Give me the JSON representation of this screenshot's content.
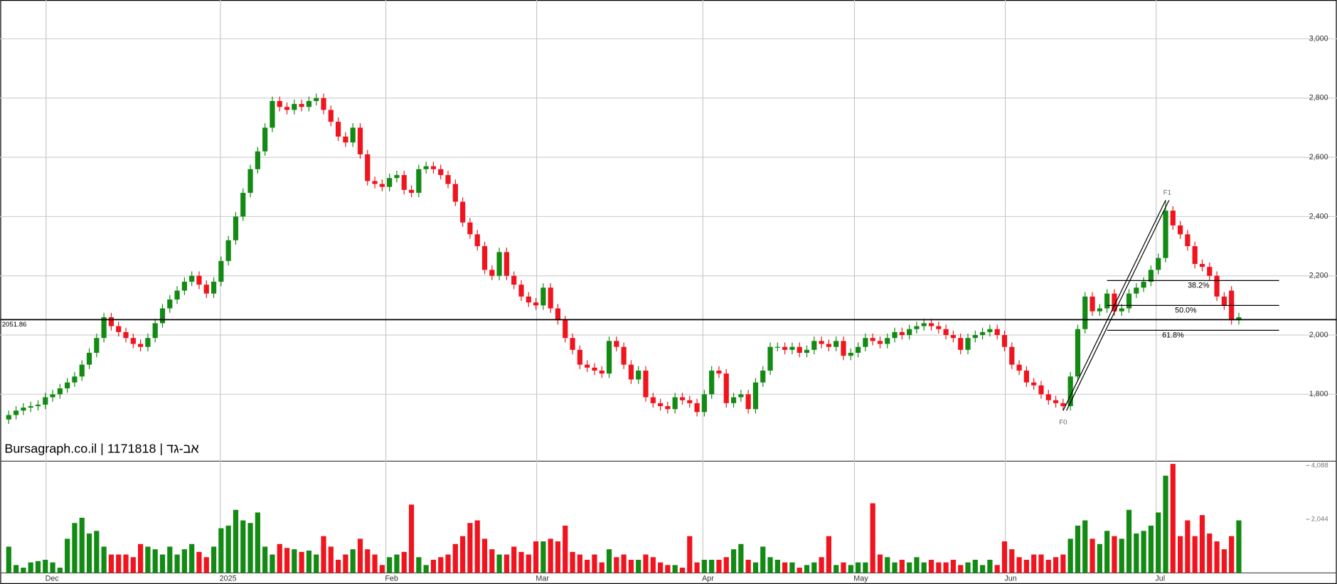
{
  "chart_data": {
    "type": "candlestick",
    "title": "Bursagraph.co.il | 1171818 | אב-גד",
    "up_color": "#138a13",
    "down_color": "#f0141e",
    "grid": true,
    "xlim": [
      -1.16,
      176.95
    ],
    "xticks": [
      {
        "value": 5.1,
        "label": "Dec"
      },
      {
        "value": 28.9,
        "label": "2025"
      },
      {
        "value": 51.5,
        "label": "Feb"
      },
      {
        "value": 72.1,
        "label": "Mar"
      },
      {
        "value": 94.8,
        "label": "Apr"
      },
      {
        "value": 115.5,
        "label": "May"
      },
      {
        "value": 136.1,
        "label": "Jun"
      },
      {
        "value": 156.7,
        "label": "Jul"
      }
    ],
    "ylim": [
      1574,
      3131
    ],
    "yticks": [
      {
        "value": 1800,
        "label": "1,800"
      },
      {
        "value": 2000,
        "label": "2,000"
      },
      {
        "value": 2200,
        "label": "2,200"
      },
      {
        "value": 2400,
        "label": "2,400"
      },
      {
        "value": 2600,
        "label": "2,600"
      },
      {
        "value": 2800,
        "label": "2,800"
      },
      {
        "value": 3000,
        "label": "3,000"
      }
    ],
    "vlim": [
      0,
      4250
    ],
    "vticks": [
      {
        "value": 2044,
        "label": "2,044"
      },
      {
        "value": 4088,
        "label": "4,088"
      }
    ],
    "hline": 2051.86,
    "fib": {
      "start": {
        "x": 144,
        "y": 1745,
        "label": "F0"
      },
      "end": {
        "x": 158,
        "y": 2455,
        "label": "F1"
      },
      "levels": [
        {
          "value": 2184,
          "label": "38.2%"
        },
        {
          "value": 2100,
          "label": "50.0%"
        },
        {
          "value": 2016,
          "label": "61.8%"
        }
      ]
    },
    "open": [
      1715,
      1730,
      1745,
      1755,
      1760,
      1765,
      1790,
      1800,
      1820,
      1840,
      1860,
      1900,
      1940,
      1990,
      2060,
      2030,
      2010,
      1990,
      1970,
      1960,
      1990,
      2040,
      2090,
      2120,
      2150,
      2180,
      2200,
      2170,
      2140,
      2180,
      2250,
      2320,
      2400,
      2480,
      2560,
      2620,
      2700,
      2790,
      2770,
      2760,
      2780,
      2770,
      2790,
      2800,
      2760,
      2720,
      2670,
      2650,
      2700,
      2610,
      2520,
      2510,
      2500,
      2530,
      2540,
      2490,
      2480,
      2560,
      2570,
      2560,
      2540,
      2510,
      2450,
      2380,
      2340,
      2300,
      2220,
      2200,
      2280,
      2200,
      2170,
      2130,
      2110,
      2100,
      2160,
      2090,
      2050,
      1990,
      1950,
      1900,
      1890,
      1880,
      1870,
      1980,
      1960,
      1900,
      1850,
      1880,
      1790,
      1770,
      1760,
      1750,
      1790,
      1780,
      1770,
      1740,
      1800,
      1880,
      1870,
      1770,
      1790,
      1800,
      1750,
      1840,
      1880,
      1960,
      1960,
      1950,
      1960,
      1940,
      1950,
      1980,
      1970,
      1960,
      1980,
      1930,
      1940,
      1960,
      1990,
      1980,
      1970,
      1990,
      2010,
      2000,
      2020,
      2030,
      2040,
      2030,
      2020,
      2000,
      1990,
      1950,
      1990,
      2000,
      2010,
      2020,
      2000,
      1960,
      1900,
      1880,
      1840,
      1830,
      1800,
      1780,
      1770,
      1760,
      1860,
      2020,
      2130,
      2080,
      2090,
      2140,
      2080,
      2090,
      2140,
      2160,
      2180,
      2220,
      2260,
      2420,
      2370,
      2340,
      2300,
      2240,
      2230,
      2200,
      2130,
      2150,
      2050
    ],
    "high": [
      1745,
      1760,
      1770,
      1775,
      1780,
      1805,
      1815,
      1835,
      1855,
      1875,
      1915,
      1955,
      2005,
      2075,
      2075,
      2045,
      2025,
      2005,
      1985,
      2005,
      2055,
      2105,
      2135,
      2165,
      2195,
      2215,
      2215,
      2185,
      2195,
      2265,
      2335,
      2415,
      2495,
      2575,
      2635,
      2715,
      2805,
      2805,
      2785,
      2795,
      2795,
      2805,
      2815,
      2815,
      2775,
      2735,
      2685,
      2715,
      2715,
      2625,
      2535,
      2525,
      2545,
      2555,
      2555,
      2505,
      2575,
      2585,
      2585,
      2575,
      2555,
      2525,
      2465,
      2395,
      2355,
      2315,
      2235,
      2295,
      2295,
      2215,
      2185,
      2145,
      2125,
      2175,
      2175,
      2105,
      2065,
      2005,
      1965,
      1915,
      1905,
      1895,
      1995,
      1995,
      1975,
      1915,
      1895,
      1895,
      1805,
      1785,
      1775,
      1805,
      1805,
      1795,
      1785,
      1815,
      1895,
      1895,
      1885,
      1805,
      1815,
      1815,
      1855,
      1895,
      1975,
      1975,
      1975,
      1975,
      1975,
      1965,
      1995,
      1995,
      1985,
      1995,
      1995,
      1955,
      1975,
      2005,
      2005,
      1995,
      2005,
      2025,
      2025,
      2035,
      2045,
      2055,
      2055,
      2045,
      2035,
      2015,
      2005,
      2005,
      2015,
      2025,
      2035,
      2035,
      2015,
      1975,
      1915,
      1895,
      1855,
      1845,
      1815,
      1795,
      1785,
      1875,
      2035,
      2145,
      2145,
      2105,
      2155,
      2155,
      2105,
      2155,
      2175,
      2195,
      2235,
      2275,
      2455,
      2435,
      2385,
      2355,
      2315,
      2255,
      2245,
      2215,
      2145,
      2165,
      2075
    ],
    "low": [
      1700,
      1715,
      1730,
      1740,
      1745,
      1750,
      1775,
      1785,
      1805,
      1825,
      1845,
      1885,
      1925,
      1975,
      2015,
      1995,
      1975,
      1955,
      1945,
      1945,
      1975,
      2025,
      2075,
      2105,
      2135,
      2165,
      2155,
      2125,
      2125,
      2165,
      2235,
      2305,
      2385,
      2465,
      2545,
      2605,
      2685,
      2755,
      2745,
      2745,
      2755,
      2755,
      2775,
      2745,
      2705,
      2655,
      2635,
      2635,
      2595,
      2505,
      2495,
      2485,
      2485,
      2515,
      2475,
      2465,
      2465,
      2545,
      2545,
      2525,
      2495,
      2435,
      2365,
      2325,
      2285,
      2205,
      2185,
      2185,
      2185,
      2155,
      2115,
      2095,
      2085,
      2085,
      2075,
      2035,
      1975,
      1935,
      1885,
      1875,
      1865,
      1855,
      1855,
      1945,
      1885,
      1835,
      1835,
      1775,
      1755,
      1745,
      1735,
      1735,
      1765,
      1755,
      1725,
      1725,
      1785,
      1855,
      1755,
      1755,
      1775,
      1735,
      1735,
      1825,
      1865,
      1945,
      1935,
      1935,
      1925,
      1925,
      1935,
      1955,
      1945,
      1945,
      1915,
      1915,
      1925,
      1945,
      1965,
      1955,
      1955,
      1975,
      1985,
      1985,
      2005,
      2015,
      2015,
      2005,
      1985,
      1975,
      1935,
      1935,
      1975,
      1985,
      1995,
      1985,
      1945,
      1885,
      1865,
      1825,
      1815,
      1785,
      1765,
      1755,
      1745,
      1745,
      1845,
      2005,
      2065,
      2065,
      2075,
      2065,
      2065,
      2075,
      2125,
      2145,
      2165,
      2205,
      2245,
      2355,
      2325,
      2285,
      2225,
      2215,
      2185,
      2115,
      2085,
      2035,
      2035
    ],
    "close": [
      1730,
      1745,
      1755,
      1760,
      1765,
      1790,
      1800,
      1820,
      1840,
      1860,
      1900,
      1940,
      1990,
      2060,
      2030,
      2010,
      1990,
      1970,
      1960,
      1990,
      2040,
      2090,
      2120,
      2150,
      2180,
      2200,
      2170,
      2140,
      2180,
      2250,
      2320,
      2400,
      2480,
      2560,
      2620,
      2700,
      2790,
      2770,
      2760,
      2780,
      2770,
      2790,
      2800,
      2760,
      2720,
      2670,
      2650,
      2700,
      2610,
      2520,
      2510,
      2500,
      2530,
      2540,
      2490,
      2480,
      2560,
      2570,
      2560,
      2540,
      2510,
      2450,
      2380,
      2340,
      2300,
      2220,
      2200,
      2280,
      2200,
      2170,
      2130,
      2110,
      2100,
      2160,
      2090,
      2050,
      1990,
      1950,
      1900,
      1890,
      1880,
      1870,
      1980,
      1960,
      1900,
      1850,
      1880,
      1790,
      1770,
      1760,
      1750,
      1790,
      1780,
      1770,
      1740,
      1800,
      1880,
      1870,
      1770,
      1790,
      1800,
      1750,
      1840,
      1880,
      1960,
      1960,
      1950,
      1960,
      1940,
      1950,
      1980,
      1970,
      1960,
      1980,
      1930,
      1940,
      1960,
      1990,
      1980,
      1970,
      1990,
      2010,
      2000,
      2020,
      2030,
      2040,
      2030,
      2020,
      2000,
      1990,
      1950,
      1990,
      2000,
      2010,
      2020,
      2000,
      1960,
      1900,
      1880,
      1840,
      1830,
      1800,
      1780,
      1770,
      1760,
      1860,
      2020,
      2130,
      2080,
      2090,
      2140,
      2080,
      2090,
      2140,
      2160,
      2180,
      2220,
      2260,
      2420,
      2370,
      2340,
      2300,
      2240,
      2230,
      2200,
      2130,
      2100,
      2050,
      2060
    ],
    "volume": [
      1000,
      300,
      200,
      400,
      450,
      500,
      400,
      200,
      1300,
      1900,
      2100,
      1500,
      1600,
      1000,
      700,
      700,
      700,
      600,
      1100,
      1000,
      900,
      700,
      1000,
      700,
      900,
      1100,
      800,
      600,
      1000,
      1700,
      1800,
      2400,
      2000,
      1900,
      2300,
      1000,
      700,
      1100,
      950,
      900,
      800,
      850,
      700,
      1400,
      1000,
      500,
      700,
      900,
      1300,
      900,
      700,
      300,
      600,
      700,
      800,
      2600,
      600,
      300,
      500,
      600,
      700,
      1100,
      1400,
      1900,
      2000,
      1300,
      900,
      700,
      700,
      1000,
      800,
      700,
      1200,
      1200,
      1300,
      1200,
      1800,
      800,
      700,
      500,
      700,
      400,
      900,
      600,
      700,
      500,
      500,
      700,
      600,
      400,
      300,
      300,
      200,
      1400,
      400,
      500,
      500,
      500,
      600,
      900,
      1100,
      500,
      400,
      1000,
      600,
      500,
      400,
      400,
      200,
      300,
      400,
      600,
      1400,
      300,
      400,
      300,
      400,
      400,
      2650,
      700,
      600,
      400,
      500,
      400,
      600,
      400,
      500,
      400,
      400,
      500,
      300,
      400,
      500,
      300,
      500,
      300,
      1200,
      900,
      600,
      500,
      700,
      700,
      500,
      600,
      700,
      1300,
      1800,
      2000,
      1300,
      1100,
      1600,
      1400,
      1300,
      2400,
      1500,
      1600,
      1800,
      2300,
      3700,
      4150,
      1400,
      2000,
      1400,
      2200,
      1500,
      1200,
      900,
      1400,
      2000
    ]
  }
}
